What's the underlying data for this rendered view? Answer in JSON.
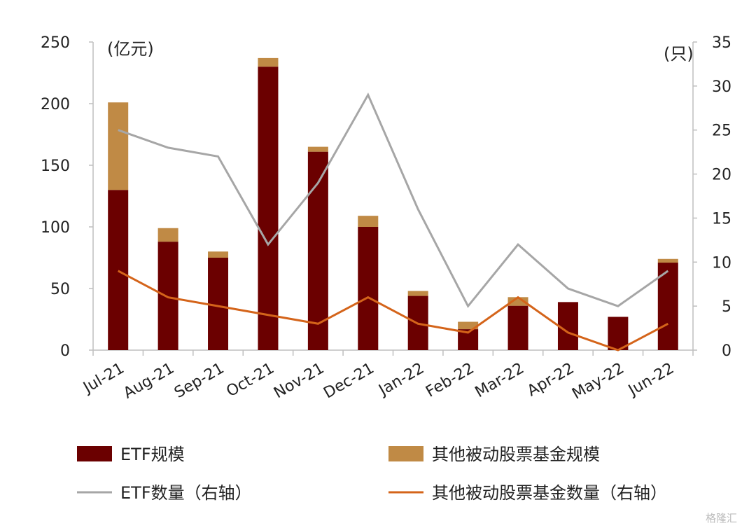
{
  "chart_data": {
    "type": "bar",
    "categories": [
      "Jul-21",
      "Aug-21",
      "Sep-21",
      "Oct-21",
      "Nov-21",
      "Dec-21",
      "Jan-22",
      "Feb-22",
      "Mar-22",
      "Apr-22",
      "May-22",
      "Jun-22"
    ],
    "series": [
      {
        "name": "ETF规模",
        "kind": "bar",
        "stack": "scale",
        "axis": "left",
        "color": "#6b0000",
        "values": [
          130,
          88,
          75,
          230,
          161,
          100,
          44,
          17,
          36,
          39,
          27,
          71
        ]
      },
      {
        "name": "其他被动股票基金规模",
        "kind": "bar",
        "stack": "scale",
        "axis": "left",
        "color": "#c08a45",
        "values": [
          71,
          11,
          5,
          7,
          4,
          9,
          4,
          6,
          7,
          0,
          0,
          3
        ]
      },
      {
        "name": "ETF数量（右轴）",
        "kind": "line",
        "axis": "right",
        "color": "#a6a6a6",
        "values": [
          25,
          23,
          22,
          12,
          19,
          29,
          16,
          5,
          12,
          7,
          5,
          9
        ]
      },
      {
        "name": "其他被动股票基金数量（右轴）",
        "kind": "line",
        "axis": "right",
        "color": "#d4641a",
        "values": [
          9,
          6,
          5,
          4,
          3,
          6,
          3,
          2,
          6,
          2,
          0,
          3
        ]
      }
    ],
    "left_axis": {
      "unit": "(亿元)",
      "ylim": [
        0,
        250
      ],
      "ticks": [
        0,
        50,
        100,
        150,
        200,
        250
      ]
    },
    "right_axis": {
      "unit": "(只)",
      "ylim": [
        0,
        35
      ],
      "ticks": [
        0,
        5,
        10,
        15,
        20,
        25,
        30,
        35
      ]
    },
    "grid": false,
    "legend_position": "bottom"
  },
  "watermark": "格隆汇"
}
